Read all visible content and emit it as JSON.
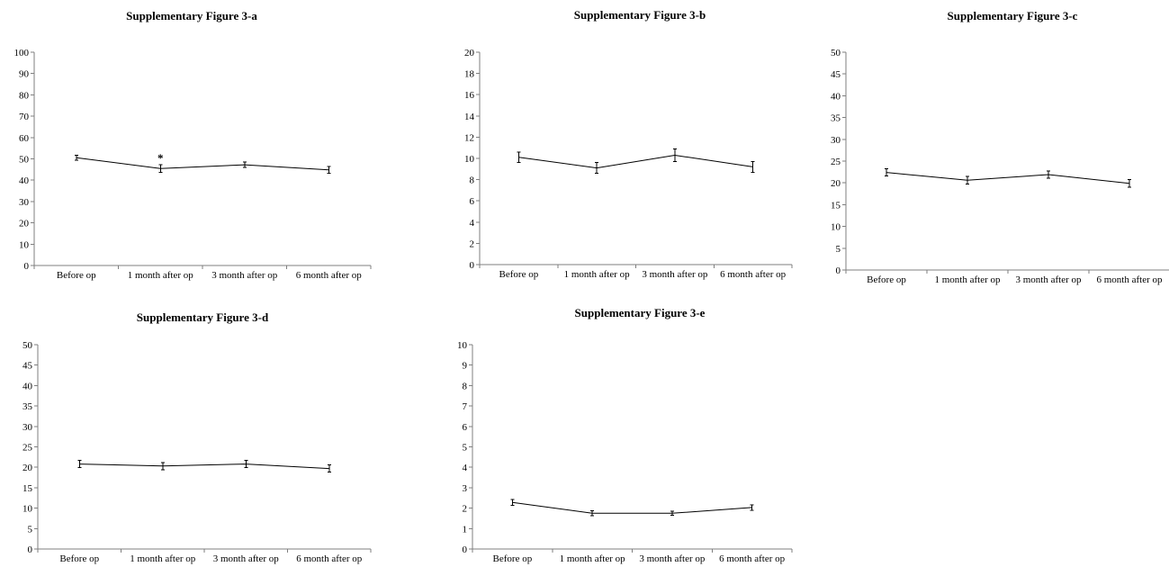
{
  "chart_data": [
    {
      "type": "line",
      "title": "Supplementary Figure 3-a",
      "categories": [
        "Before op",
        "1 month after op",
        "3 month after op",
        "6 month after op"
      ],
      "values": [
        50.5,
        45.5,
        47.2,
        44.8
      ],
      "error": [
        1.2,
        1.8,
        1.3,
        1.6
      ],
      "ylim": [
        0,
        100
      ],
      "yticks": [
        "0",
        "10",
        "20",
        "30",
        "40",
        "50",
        "60",
        "70",
        "80",
        "90",
        "100"
      ],
      "annotations": [
        {
          "category_index": 1,
          "text": "*"
        }
      ]
    },
    {
      "type": "line",
      "title": "Supplementary  Figure 3-b",
      "categories": [
        "Before op",
        "1 month after op",
        "3 month after op",
        "6 month after op"
      ],
      "values": [
        10.1,
        9.1,
        10.3,
        9.2
      ],
      "error": [
        0.5,
        0.5,
        0.6,
        0.5
      ],
      "ylim": [
        0,
        20
      ],
      "yticks": [
        "0",
        "2",
        "4",
        "6",
        "8",
        "10",
        "12",
        "14",
        "16",
        "18",
        "20"
      ],
      "annotations": []
    },
    {
      "type": "line",
      "title": "Supplementary Figure 3-c",
      "categories": [
        "Before op",
        "1 month after op",
        "3 month after op",
        "6 month after op"
      ],
      "values": [
        22.4,
        20.6,
        21.9,
        19.9
      ],
      "error": [
        0.8,
        0.9,
        0.8,
        0.9
      ],
      "ylim": [
        0,
        50
      ],
      "yticks": [
        "0",
        "5",
        "10",
        "15",
        "20",
        "25",
        "30",
        "35",
        "40",
        "45",
        "50"
      ],
      "annotations": []
    },
    {
      "type": "line",
      "title": "Supplementary Figure 3-d",
      "categories": [
        "Before op",
        "1 month after op",
        "3 month after op",
        "6 month after op"
      ],
      "values": [
        20.8,
        20.3,
        20.8,
        19.7
      ],
      "error": [
        0.9,
        0.9,
        0.9,
        0.9
      ],
      "ylim": [
        0,
        50
      ],
      "yticks": [
        "0",
        "5",
        "10",
        "15",
        "20",
        "25",
        "30",
        "35",
        "40",
        "45",
        "50"
      ],
      "annotations": []
    },
    {
      "type": "line",
      "title": "Supplementary  Figure 3-e",
      "categories": [
        "Before op",
        "1 month after op",
        "3 month after op",
        "6 month after op"
      ],
      "values": [
        2.28,
        1.75,
        1.75,
        2.03
      ],
      "error": [
        0.15,
        0.12,
        0.1,
        0.13
      ],
      "ylim": [
        0,
        10
      ],
      "yticks": [
        "0",
        "1",
        "2",
        "3",
        "4",
        "5",
        "6",
        "7",
        "8",
        "9",
        "10"
      ],
      "annotations": []
    }
  ]
}
